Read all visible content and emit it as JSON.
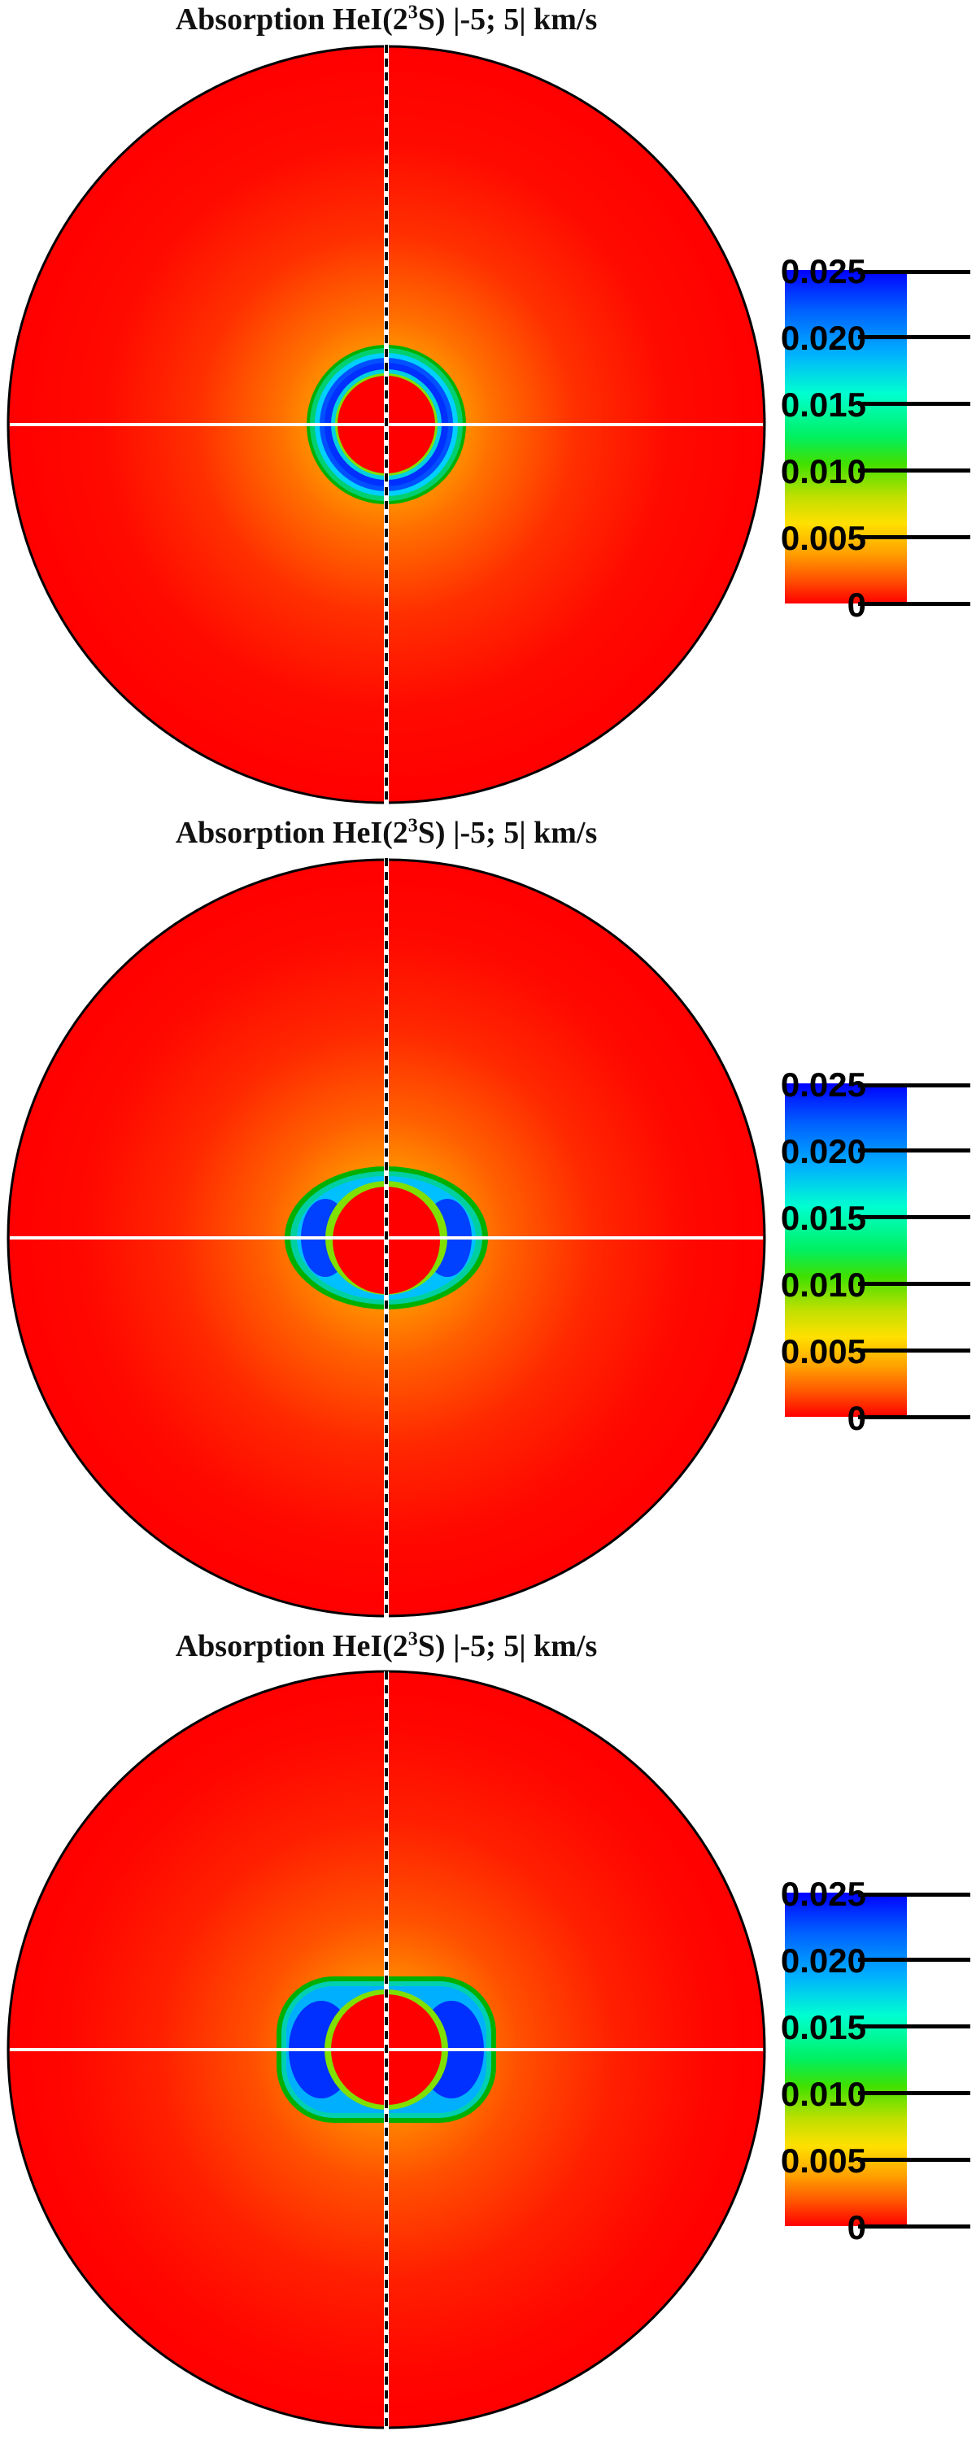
{
  "chart_data": [
    {
      "type": "heatmap",
      "title_prefix": "Absorption HeI(2",
      "title_sup": "3",
      "title_suffix": "S) |-5; 5| km/s",
      "color_scale": {
        "min": 0,
        "max": 0.025
      },
      "colorbar_ticks": [
        "0.025",
        "0.020",
        "0.015",
        "0.010",
        "0.005",
        "0"
      ],
      "colorbar_tick_values": [
        0.025,
        0.02,
        0.015,
        0.01,
        0.005,
        0
      ],
      "colormap": [
        "#ff0000",
        "#ff8000",
        "#ffe000",
        "#00e000",
        "#00ffd0",
        "#0050ff",
        "#0000ff"
      ],
      "structure": "annulus",
      "lobe_strength": 0.0
    },
    {
      "type": "heatmap",
      "title_prefix": "Absorption HeI(2",
      "title_sup": "3",
      "title_suffix": "S) |-5; 5| km/s",
      "color_scale": {
        "min": 0,
        "max": 0.025
      },
      "colorbar_ticks": [
        "0.025",
        "0.020",
        "0.015",
        "0.010",
        "0.005",
        "0"
      ],
      "colorbar_tick_values": [
        0.025,
        0.02,
        0.015,
        0.01,
        0.005,
        0
      ],
      "colormap": [
        "#ff0000",
        "#ff8000",
        "#ffe000",
        "#00e000",
        "#00ffd0",
        "#0050ff",
        "#0000ff"
      ],
      "structure": "side-lobes",
      "lobe_strength": 0.5
    },
    {
      "type": "heatmap",
      "title_prefix": "Absorption HeI(2",
      "title_sup": "3",
      "title_suffix": "S) |-5; 5| km/s",
      "color_scale": {
        "min": 0,
        "max": 0.025
      },
      "colorbar_ticks": [
        "0.025",
        "0.020",
        "0.015",
        "0.010",
        "0.005",
        "0"
      ],
      "colorbar_tick_values": [
        0.025,
        0.02,
        0.015,
        0.01,
        0.005,
        0
      ],
      "colormap": [
        "#ff0000",
        "#ff8000",
        "#ffe000",
        "#00e000",
        "#00ffd0",
        "#0050ff",
        "#0000ff"
      ],
      "structure": "side-lobes",
      "lobe_strength": 1.0
    }
  ]
}
